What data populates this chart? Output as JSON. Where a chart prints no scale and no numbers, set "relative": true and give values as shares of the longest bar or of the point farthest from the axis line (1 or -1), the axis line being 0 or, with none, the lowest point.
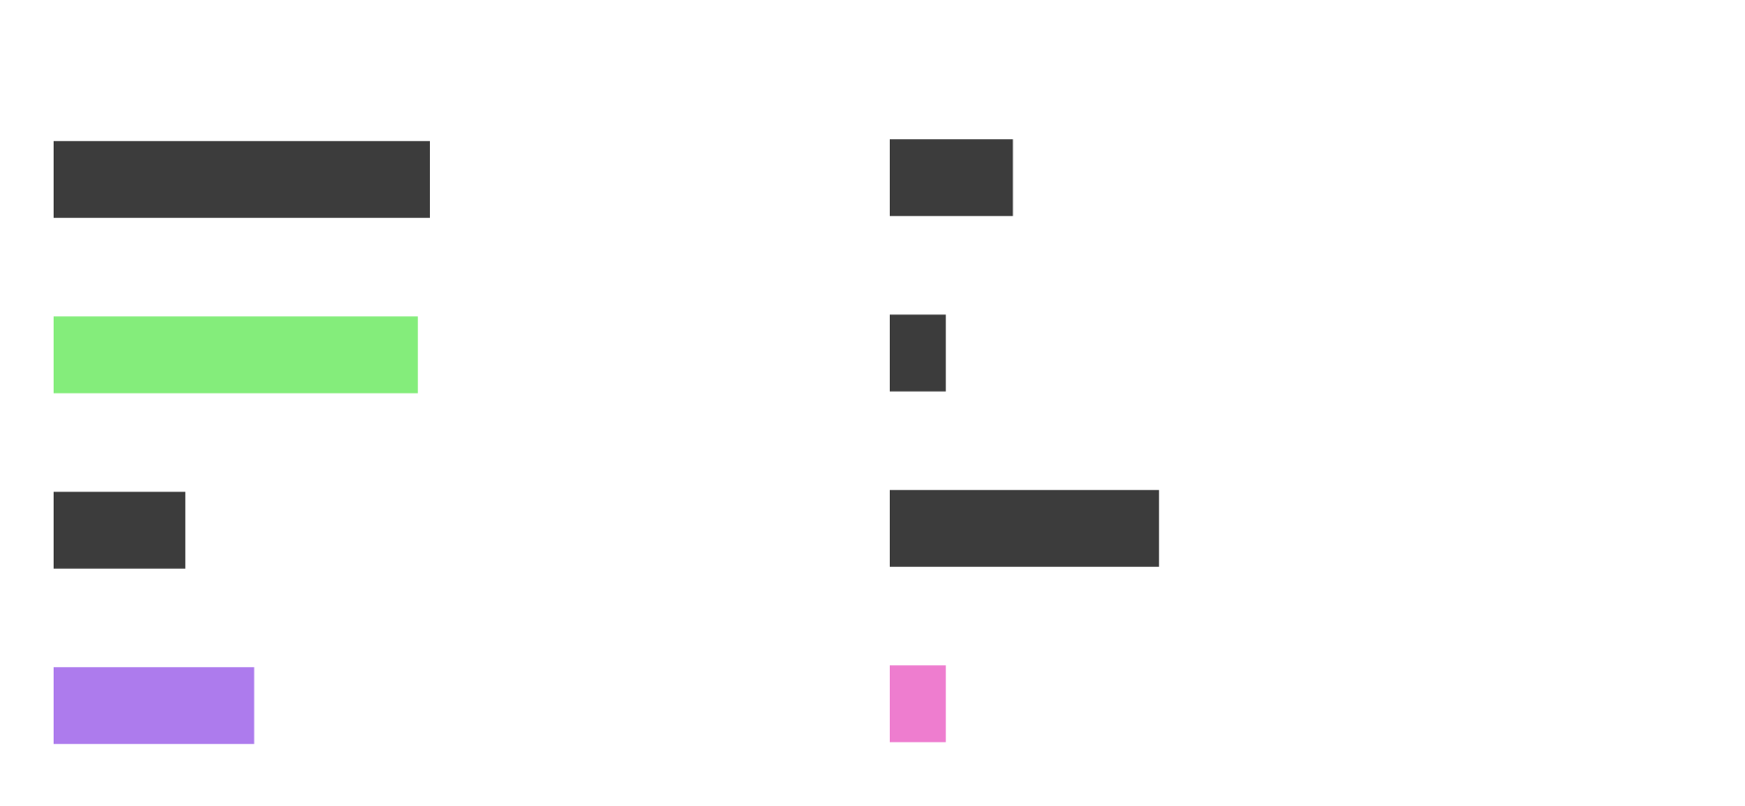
{
  "chart_data": [
    {
      "type": "bar",
      "orientation": "horizontal",
      "relative": true,
      "categories": [
        null,
        null,
        null,
        null
      ],
      "values": [
        1,
        0.968,
        0.35,
        0.533
      ],
      "colors": [
        "#3c3c3c",
        "#84ed7b",
        "#3c3c3c",
        "#ad7bed"
      ]
    },
    {
      "type": "bar",
      "orientation": "horizontal",
      "relative": true,
      "categories": [
        null,
        null,
        null,
        null
      ],
      "values": [
        0.457,
        0.208,
        1,
        0.208
      ],
      "colors": [
        "#3c3c3c",
        "#3c3c3c",
        "#3c3c3c",
        "#ee7dcf"
      ]
    }
  ]
}
